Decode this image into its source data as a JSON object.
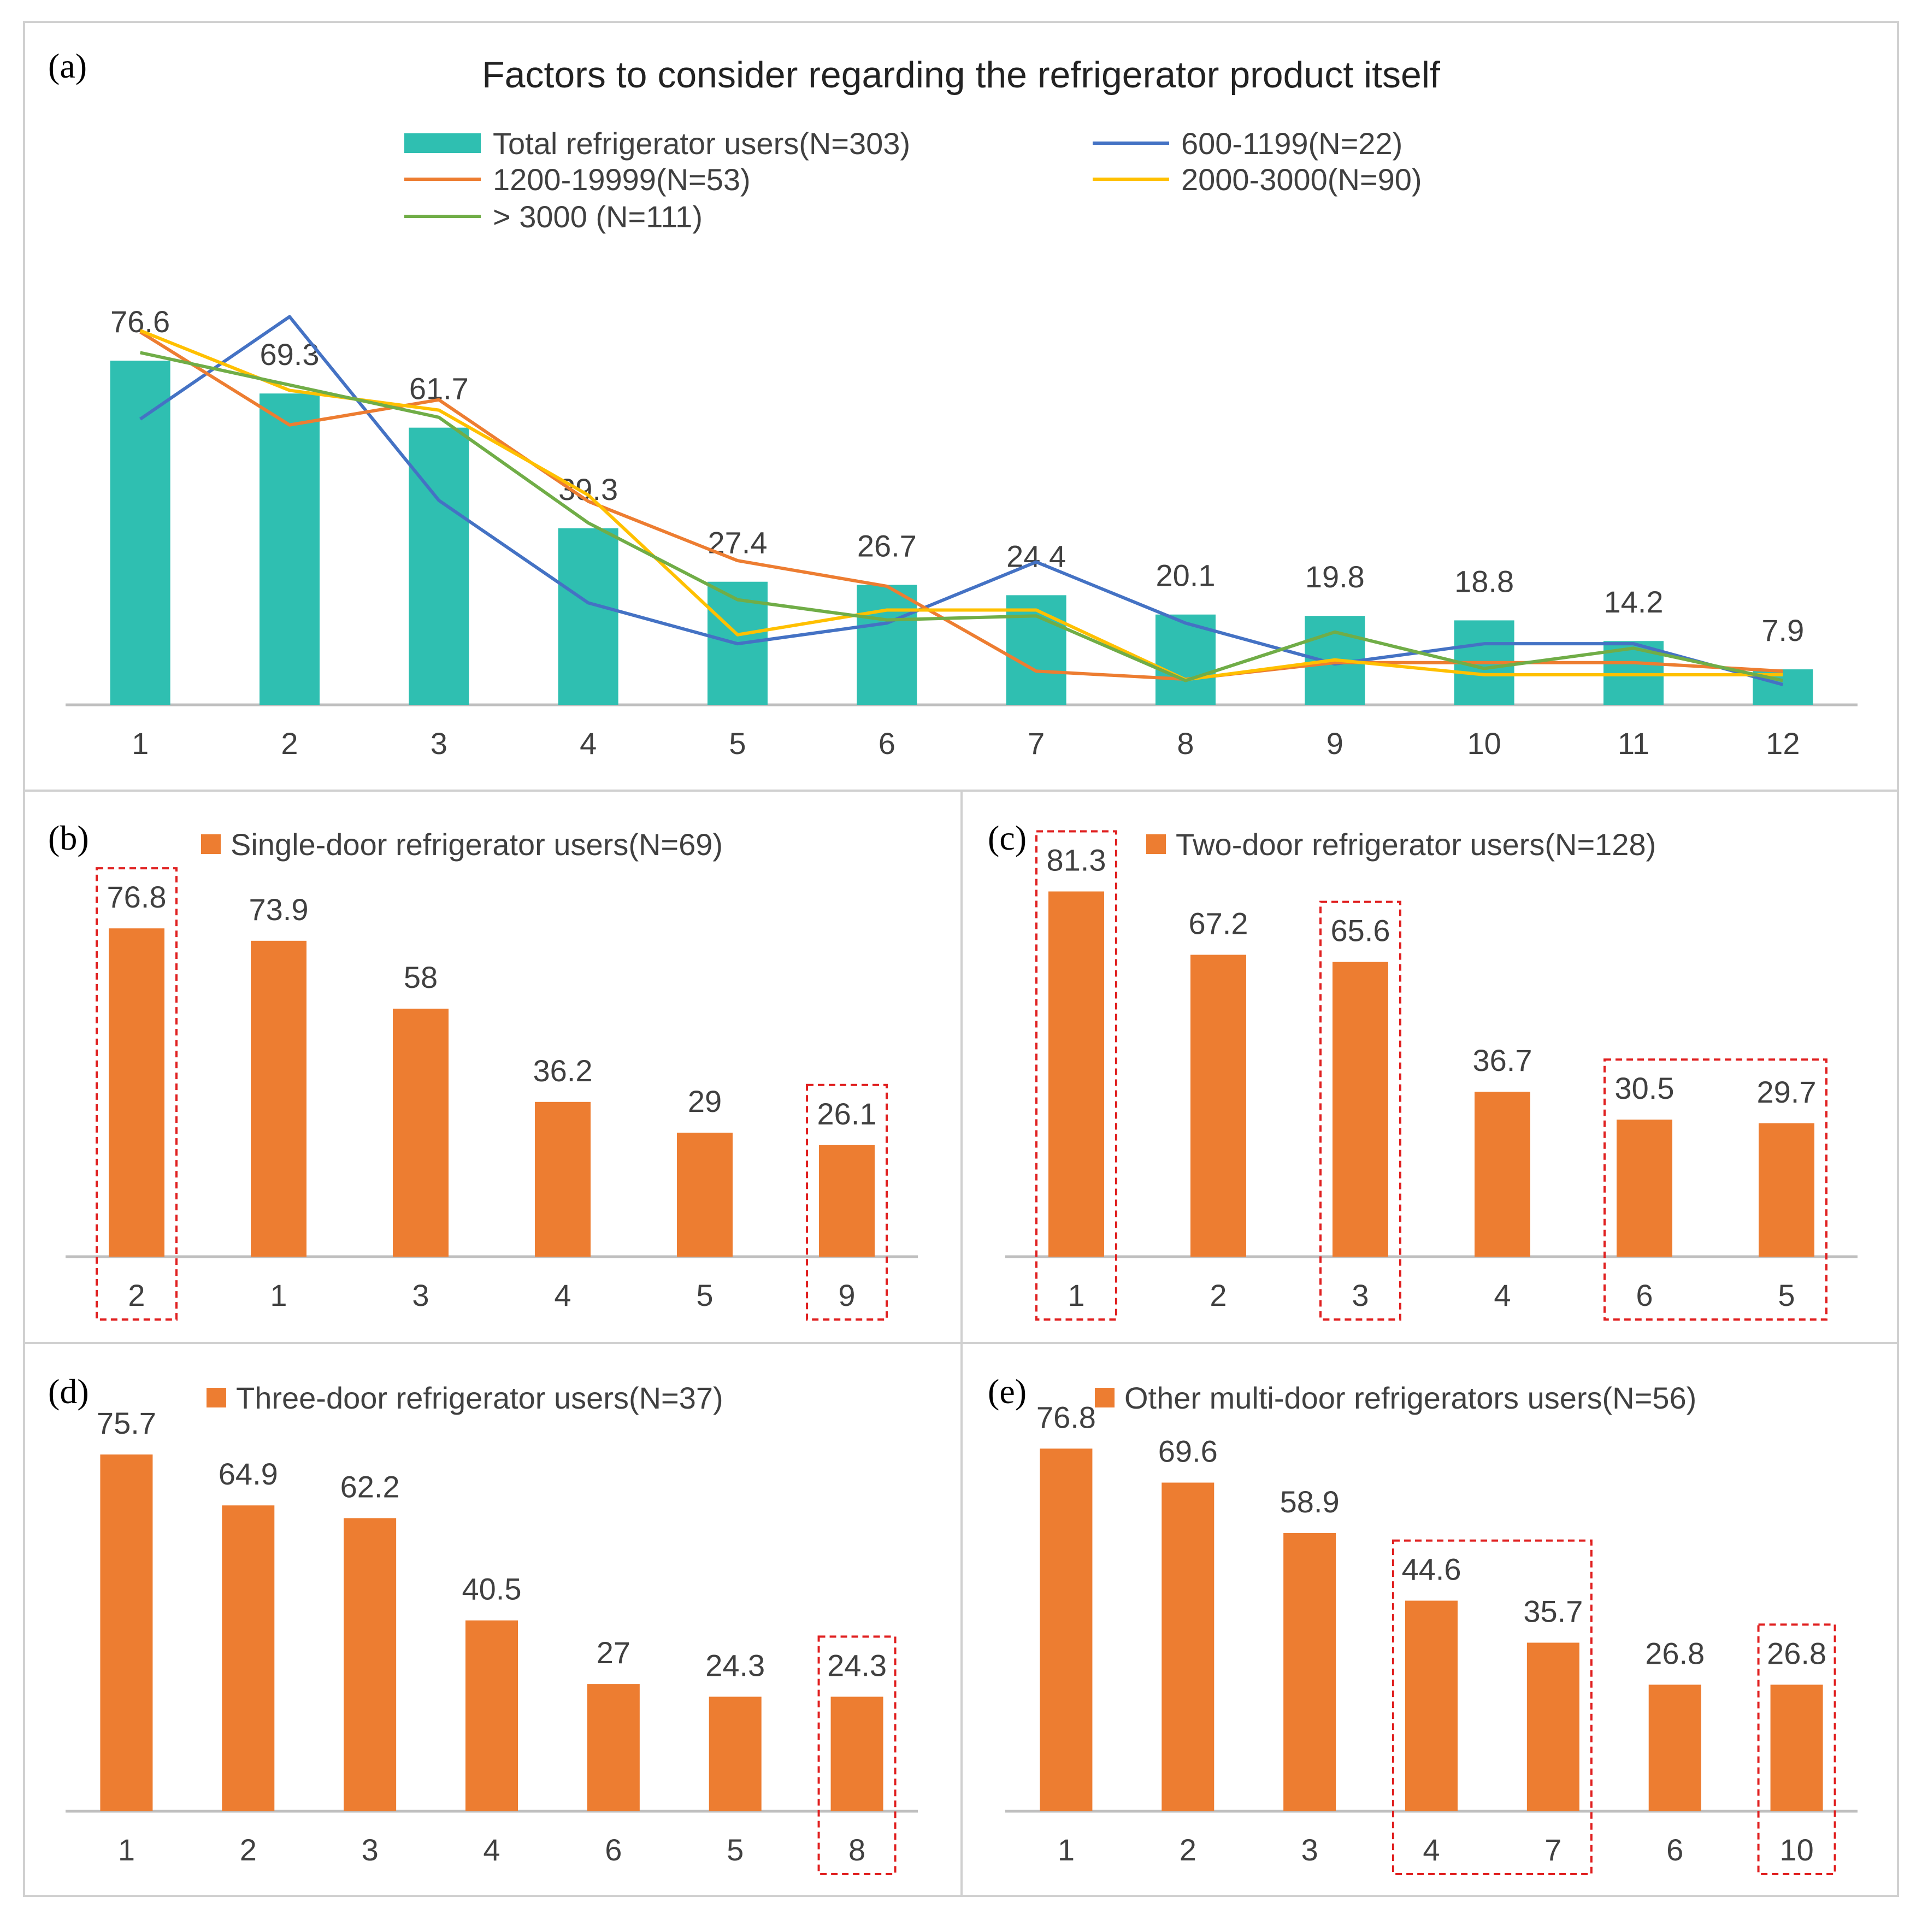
{
  "colors": {
    "teal": "#2FBFB1",
    "orange_bar": "#ED7D31",
    "line_600_1199": "#4472C4",
    "line_1200_19999": "#ED7D31",
    "line_2000_3000": "#FFC000",
    "line_gt3000": "#70AD47",
    "axis": "#BFBFBF",
    "text": "#404040",
    "highlight": "#E02020",
    "panel_border": "#D0D0D0"
  },
  "chart_data": [
    {
      "id": "a",
      "letter": "(a)",
      "type": "bar",
      "title": "Factors to consider regarding the refrigerator product itself",
      "categories": [
        "1",
        "2",
        "3",
        "4",
        "5",
        "6",
        "7",
        "8",
        "9",
        "10",
        "11",
        "12"
      ],
      "bar_series": {
        "name": "Total refrigerator users(N=303)",
        "values": [
          76.6,
          69.3,
          61.7,
          39.3,
          27.4,
          26.7,
          24.4,
          20.1,
          19.8,
          18.8,
          14.2,
          7.9
        ]
      },
      "line_series": [
        {
          "name": "600-1199(N=22)",
          "color_key": "line_600_1199",
          "values": [
            63.6,
            86.4,
            45.5,
            22.7,
            13.6,
            18.2,
            31.8,
            18.2,
            9.1,
            13.6,
            13.6,
            4.5
          ]
        },
        {
          "name": "1200-19999(N=53)",
          "color_key": "line_1200_19999",
          "values": [
            83.0,
            62.3,
            67.9,
            45.3,
            32.1,
            26.4,
            7.5,
            5.7,
            9.4,
            9.4,
            9.4,
            7.5
          ]
        },
        {
          "name": "2000-3000(N=90)",
          "color_key": "line_2000_3000",
          "values": [
            83.3,
            70.0,
            65.6,
            46.7,
            15.6,
            21.1,
            21.1,
            5.6,
            10.0,
            6.7,
            6.7,
            6.7
          ]
        },
        {
          "name": "> 3000  (N=111)",
          "color_key": "line_gt3000",
          "values": [
            78.4,
            71.2,
            64.0,
            40.5,
            23.4,
            18.9,
            19.8,
            5.4,
            16.2,
            8.1,
            12.6,
            5.4
          ]
        }
      ],
      "ylim": [
        0,
        90
      ],
      "legend_position": "top"
    },
    {
      "id": "b",
      "letter": "(b)",
      "type": "bar",
      "legend": "Single-door refrigerator users(N=69)",
      "categories": [
        "2",
        "1",
        "3",
        "4",
        "5",
        "9"
      ],
      "values": [
        76.8,
        73.9,
        58,
        36.2,
        29,
        26.1
      ],
      "ylim": [
        0,
        85
      ],
      "highlight_groups": [
        [
          0,
          0
        ],
        [
          5,
          5
        ]
      ]
    },
    {
      "id": "c",
      "letter": "(c)",
      "type": "bar",
      "legend": "Two-door refrigerator users(N=128)",
      "categories": [
        "1",
        "2",
        "3",
        "4",
        "6",
        "5"
      ],
      "values": [
        81.3,
        67.2,
        65.6,
        36.7,
        30.5,
        29.7
      ],
      "ylim": [
        0,
        90
      ],
      "highlight_groups": [
        [
          0,
          0
        ],
        [
          2,
          2
        ],
        [
          4,
          5
        ]
      ]
    },
    {
      "id": "d",
      "letter": "(d)",
      "type": "bar",
      "legend": "Three-door refrigerator users(N=37)",
      "categories": [
        "1",
        "2",
        "3",
        "4",
        "6",
        "5",
        "8"
      ],
      "values": [
        75.7,
        64.9,
        62.2,
        40.5,
        27,
        24.3,
        24.3
      ],
      "ylim": [
        0,
        80
      ],
      "highlight_groups": [
        [
          6,
          6
        ]
      ]
    },
    {
      "id": "e",
      "letter": "(e)",
      "type": "bar",
      "legend": "Other multi-door refrigerators users(N=56)",
      "categories": [
        "1",
        "2",
        "3",
        "4",
        "7",
        "6",
        "10"
      ],
      "values": [
        76.8,
        69.6,
        58.9,
        44.6,
        35.7,
        26.8,
        26.8
      ],
      "ylim": [
        0,
        81
      ],
      "highlight_groups": [
        [
          3,
          4
        ],
        [
          6,
          6
        ]
      ]
    }
  ]
}
